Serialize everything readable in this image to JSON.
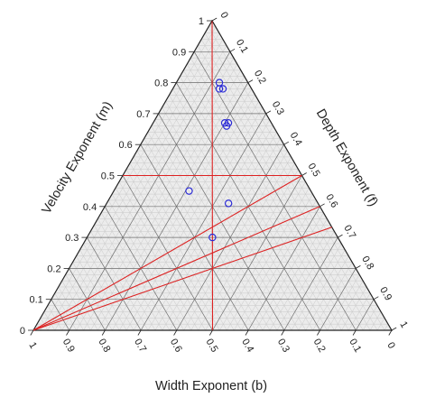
{
  "chart_data": {
    "type": "ternary",
    "axes": {
      "velocity": {
        "label": "Velocity Exponent (m)",
        "ticks": [
          "0",
          "0.1",
          "0.2",
          "0.3",
          "0.4",
          "0.5",
          "0.6",
          "0.7",
          "0.8",
          "0.9",
          "1"
        ]
      },
      "depth": {
        "label": "Depth Exponent (f)",
        "ticks": [
          "0",
          "0.1",
          "0.2",
          "0.3",
          "0.4",
          "0.5",
          "0.6",
          "0.7",
          "0.8",
          "0.9",
          "1"
        ]
      },
      "width": {
        "label": "Width Exponent (b)",
        "ticks": [
          "1",
          "0.9",
          "0.8",
          "0.7",
          "0.6",
          "0.5",
          "0.4",
          "0.3",
          "0.2",
          "0.1",
          "0"
        ]
      }
    },
    "grid": {
      "major_step": 0.1,
      "minor_step": 0.02,
      "background": "#ececec"
    },
    "colors": {
      "frame": "#222222",
      "grid_major": "#6f6f6f",
      "grid_minor": "#c9c9c9",
      "lines": "#dd2222",
      "points": "#2b2bd6"
    },
    "points": [
      {
        "m": 0.8,
        "f": 0.12
      },
      {
        "m": 0.78,
        "f": 0.13
      },
      {
        "m": 0.78,
        "f": 0.14
      },
      {
        "m": 0.67,
        "f": 0.2
      },
      {
        "m": 0.67,
        "f": 0.21
      },
      {
        "m": 0.66,
        "f": 0.21
      },
      {
        "m": 0.45,
        "f": 0.21
      },
      {
        "m": 0.41,
        "f": 0.34
      },
      {
        "m": 0.3,
        "f": 0.35
      }
    ],
    "reference_lines": [
      {
        "from": {
          "m": 1.0,
          "f": 0.0
        },
        "to": {
          "m": 0.0,
          "f": 0.5
        }
      },
      {
        "from": {
          "m": 0.5,
          "f": 0.0
        },
        "to": {
          "m": 0.5,
          "f": 0.5
        }
      },
      {
        "from": {
          "m": 0.0,
          "f": 0.0
        },
        "to": {
          "m": 0.5,
          "f": 0.5
        }
      },
      {
        "from": {
          "m": 0.0,
          "f": 0.0
        },
        "to": {
          "m": 0.4,
          "f": 0.6
        }
      },
      {
        "from": {
          "m": 0.0,
          "f": 0.0
        },
        "to": {
          "m": 0.333,
          "f": 0.667
        }
      }
    ]
  }
}
